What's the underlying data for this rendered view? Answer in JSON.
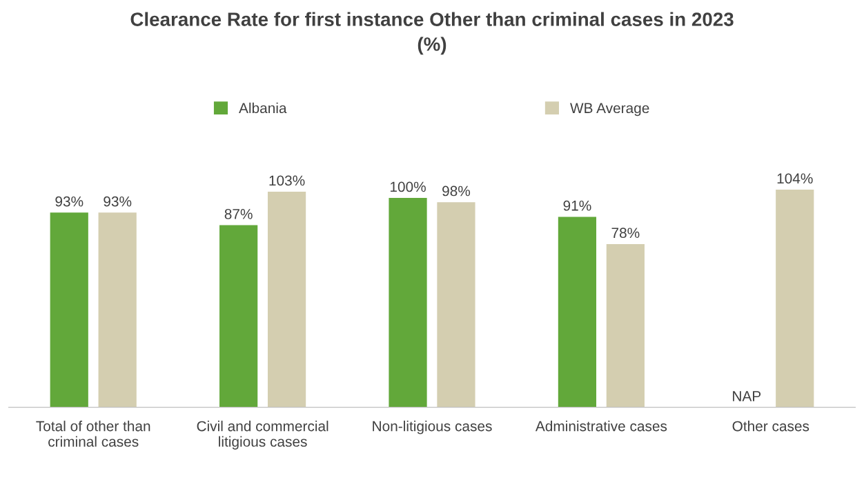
{
  "chart_data": {
    "type": "bar",
    "title": "Clearance Rate for first instance Other than criminal cases in 2023\n(%)",
    "categories": [
      "Total of other than\ncriminal cases",
      "Civil and commercial\nlitigious cases",
      "Non-litigious cases",
      "Administrative cases",
      "Other cases"
    ],
    "series": [
      {
        "name": "Albania",
        "color": "#62a83a",
        "values": [
          93,
          87,
          100,
          91,
          null
        ],
        "value_labels": [
          "93%",
          "87%",
          "100%",
          "91%",
          "NAP"
        ]
      },
      {
        "name": "WB Average",
        "color": "#d4ceb0",
        "values": [
          93,
          103,
          98,
          78,
          104
        ],
        "value_labels": [
          "93%",
          "103%",
          "98%",
          "78%",
          "104%"
        ]
      }
    ],
    "legend": "top",
    "grid": false
  }
}
